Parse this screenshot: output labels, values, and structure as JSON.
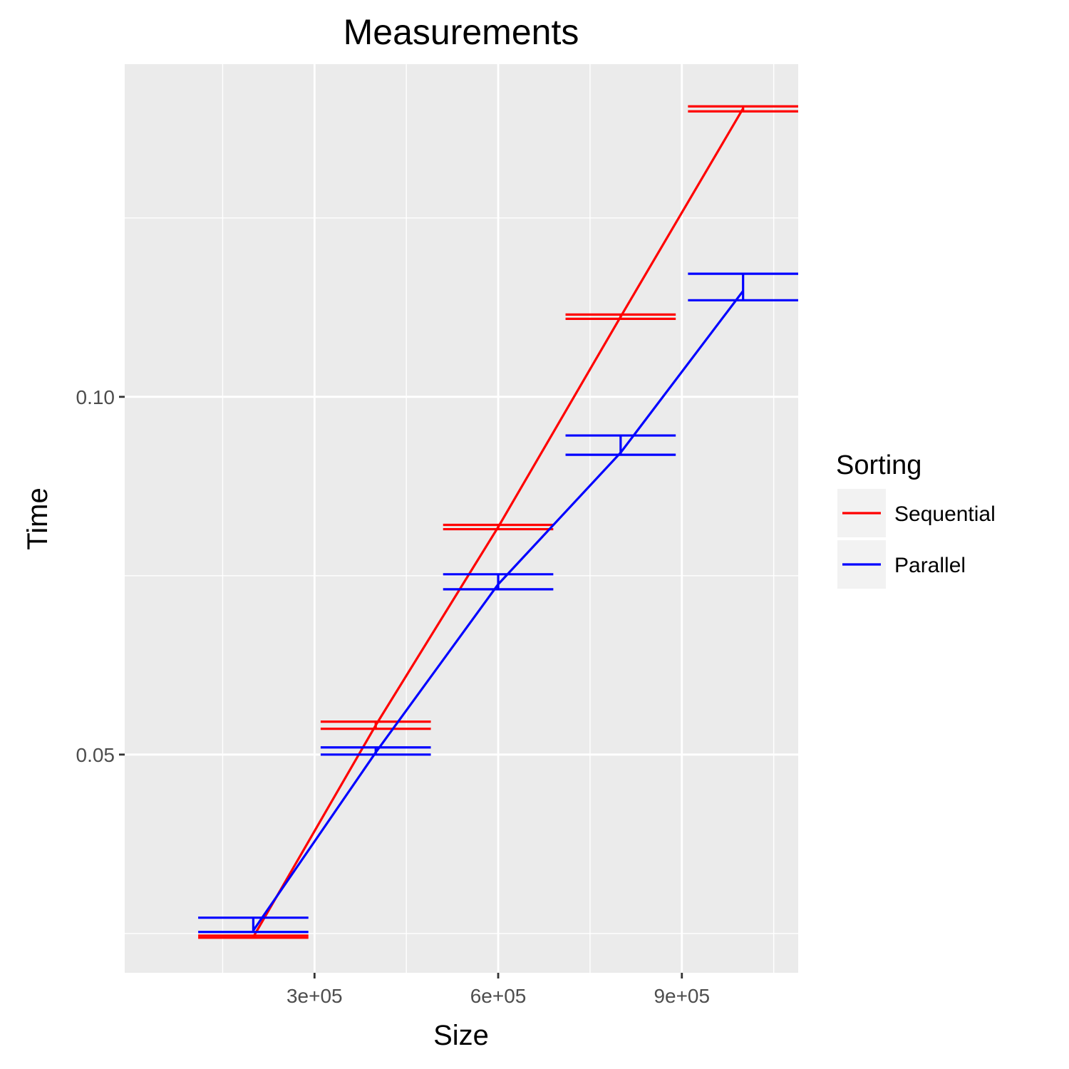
{
  "chart_data": {
    "type": "line",
    "title": "Measurements",
    "xlabel": "Size",
    "ylabel": "Time",
    "x_ticks": [
      300000,
      600000,
      900000
    ],
    "x_tick_labels": [
      "3e+05",
      "6e+05",
      "9e+05"
    ],
    "y_ticks": [
      0.05,
      0.1
    ],
    "y_tick_labels": [
      "0.05",
      "0.10"
    ],
    "xlim": [
      -10000,
      1090000
    ],
    "ylim": [
      0.0195,
      0.1465
    ],
    "grid": true,
    "legend": {
      "title": "Sorting",
      "position": "right"
    },
    "errorbar_half_width": 90000,
    "series": [
      {
        "name": "Sequential",
        "color": "#ff0000",
        "x": [
          200000,
          400000,
          600000,
          800000,
          1000000
        ],
        "y": [
          0.0245,
          0.0541,
          0.0818,
          0.1112,
          0.1403
        ],
        "ymin": [
          0.0244,
          0.0536,
          0.0815,
          0.1109,
          0.1399
        ],
        "ymax": [
          0.0247,
          0.0546,
          0.0821,
          0.1115,
          0.1406
        ]
      },
      {
        "name": "Parallel",
        "color": "#0000ff",
        "x": [
          200000,
          400000,
          600000,
          800000,
          1000000
        ],
        "y": [
          0.0254,
          0.0503,
          0.0738,
          0.0922,
          0.1148
        ],
        "ymin": [
          0.0252,
          0.05,
          0.0731,
          0.0919,
          0.1135
        ],
        "ymax": [
          0.0272,
          0.051,
          0.0752,
          0.0946,
          0.1172
        ]
      }
    ]
  }
}
